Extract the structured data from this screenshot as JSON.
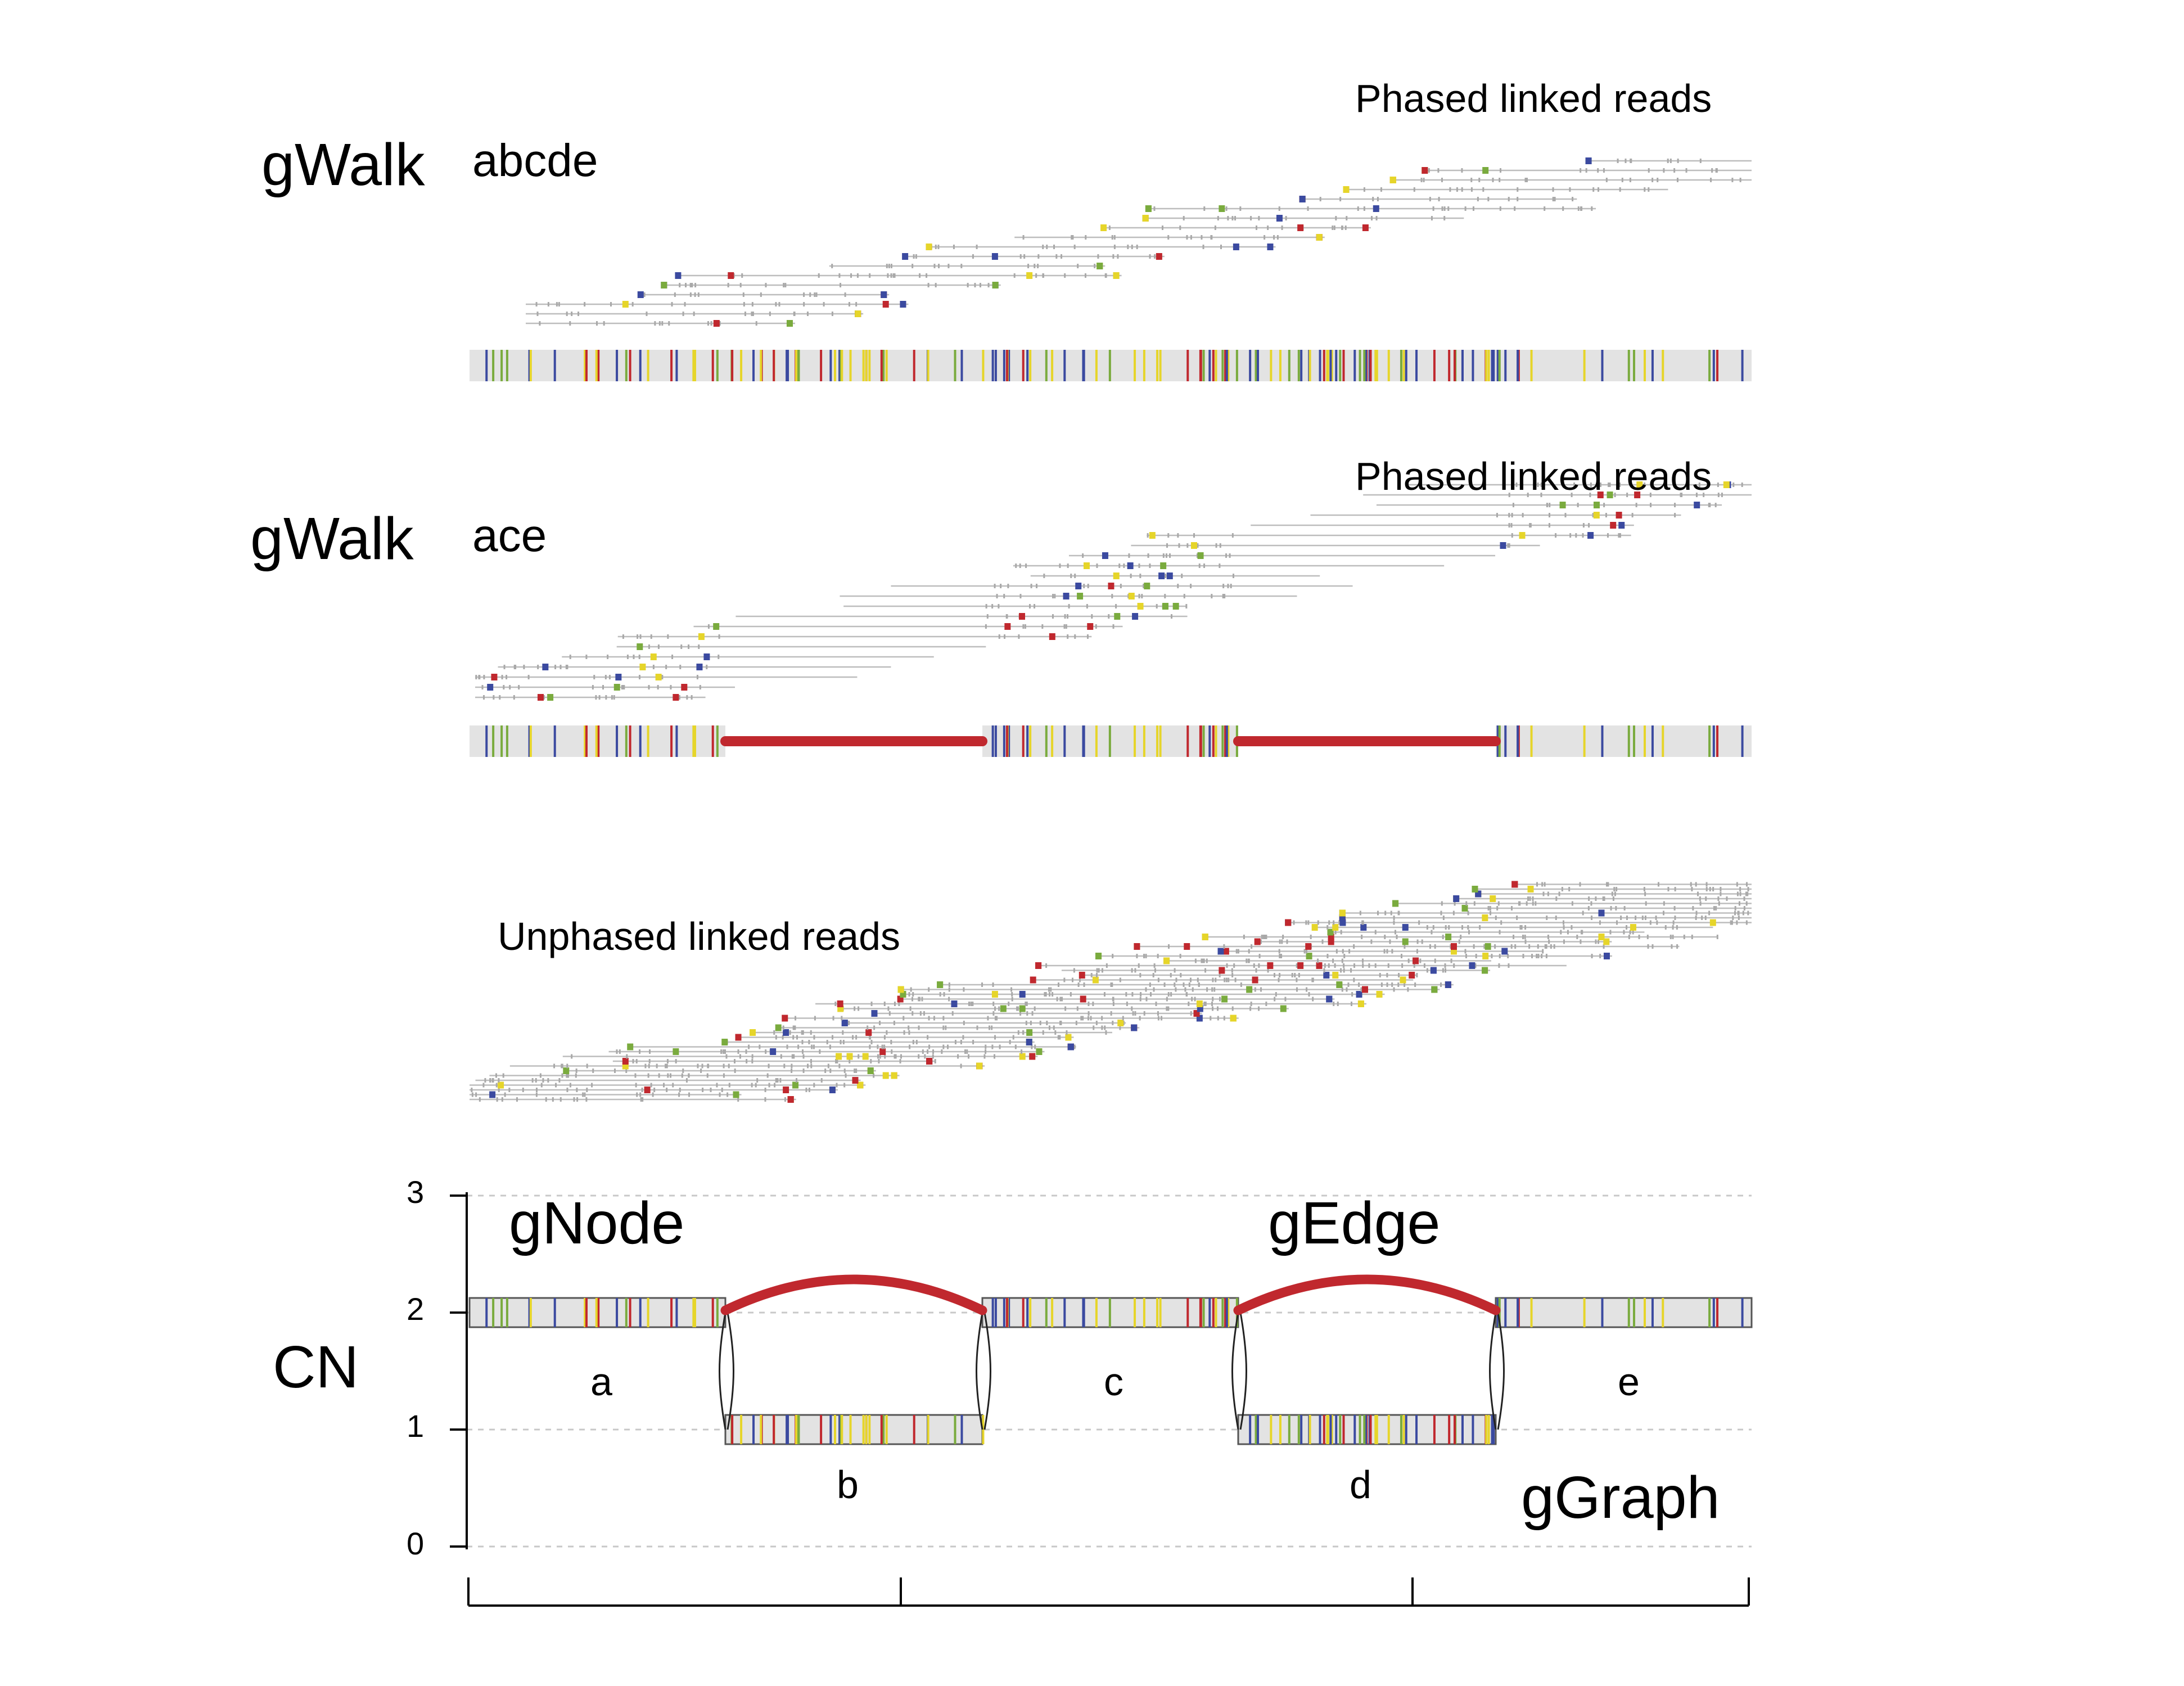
{
  "labels": {
    "gwalk_top": "gWalk",
    "walk_top": "abcde",
    "phased_top": "Phased linked reads",
    "gwalk_mid": "gWalk",
    "walk_mid": "ace",
    "phased_mid": "Phased linked reads",
    "unphased": "Unphased linked reads",
    "gnode": "gNode",
    "gedge": "gEdge",
    "ggraph": "gGraph",
    "cn_axis": "CN"
  },
  "cn_ticks": [
    "0",
    "1",
    "2",
    "3"
  ],
  "nodes": [
    {
      "name": "a",
      "cn": 2
    },
    {
      "name": "b",
      "cn": 1
    },
    {
      "name": "c",
      "cn": 2
    },
    {
      "name": "d",
      "cn": 1
    },
    {
      "name": "e",
      "cn": 2
    }
  ],
  "edges": [
    {
      "from": "a",
      "to": "c"
    },
    {
      "from": "c",
      "to": "e"
    }
  ],
  "colors": {
    "variant_red": "#c0282e",
    "variant_blue": "#3b4aa0",
    "variant_green": "#7aab3e",
    "variant_yellow": "#e6d52a",
    "edge": "#c0282e",
    "read_line": "#bdbdbd",
    "track_fill": "#e3e3e3",
    "node_fill": "#e3e3e3",
    "grid": "#c8c8c8"
  }
}
